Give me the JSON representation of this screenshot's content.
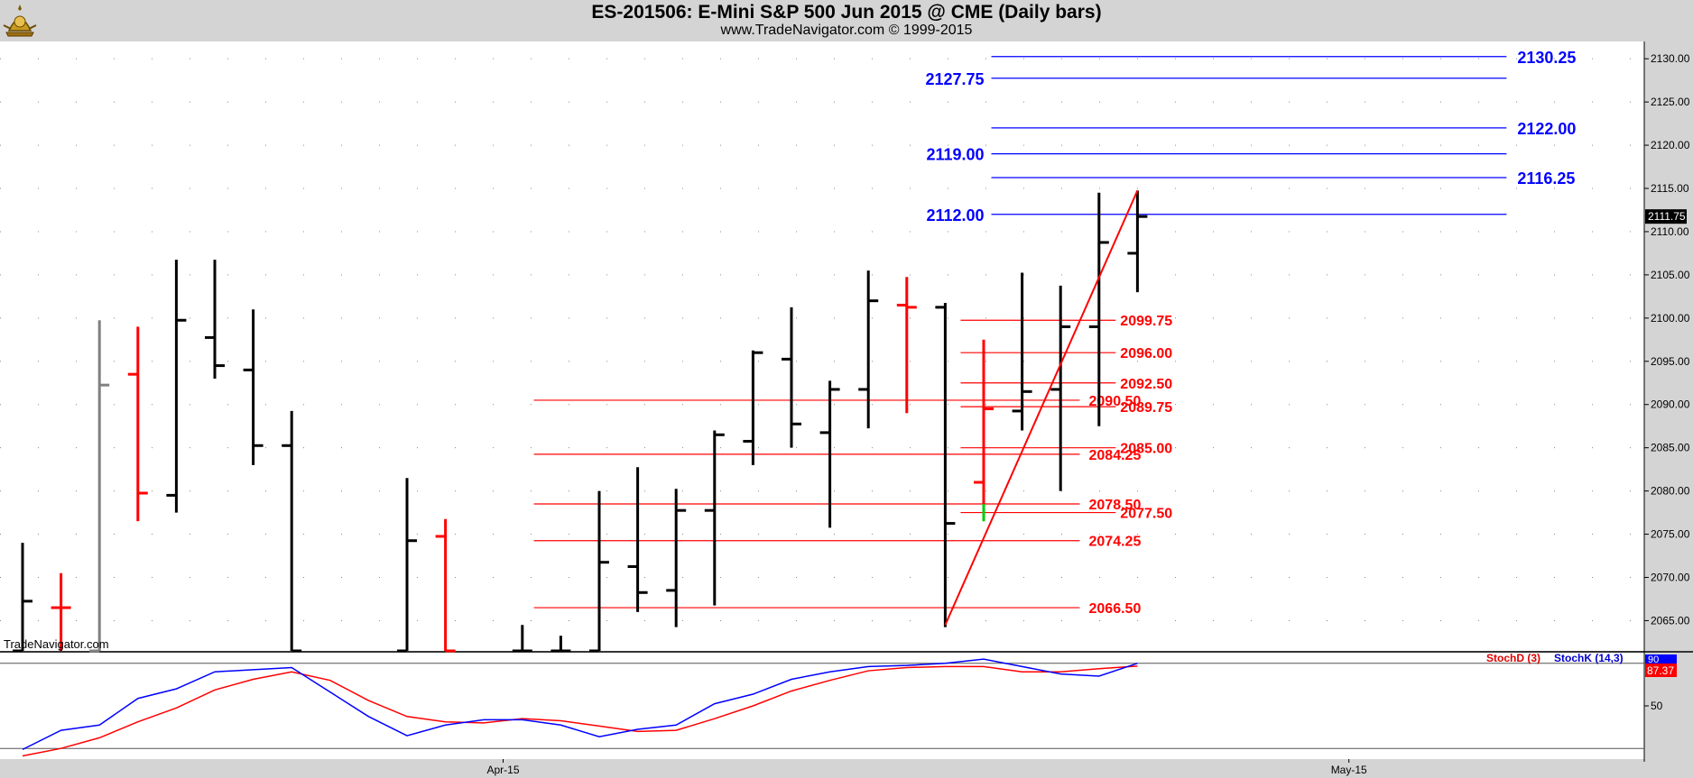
{
  "header": {
    "title": "ES-201506:  E-Mini S&P 500 Jun 2015 @ CME  (Daily bars)",
    "subtitle": "www.TradeNavigator.com © 1999-2015"
  },
  "watermark": "TradeNavigator.com",
  "colors": {
    "up_bar": "#000000",
    "down_bar": "#ff0000",
    "neutral_bar": "#808080",
    "blue_level": "#0000ff",
    "red_level": "#ff0000",
    "stoch_d": "#ff0000",
    "stoch_k": "#0000ff",
    "plot_bg": "#ffffff",
    "frame_bg": "#d4d4d4"
  },
  "chart_data": {
    "type": "ohlc",
    "price_axis": {
      "ylim": [
        2061.5,
        2132.0
      ],
      "ticks": [
        "2065.00",
        "2070.00",
        "2075.00",
        "2080.00",
        "2085.00",
        "2090.00",
        "2095.00",
        "2100.00",
        "2105.00",
        "2110.00",
        "2115.00",
        "2120.00",
        "2125.00",
        "2130.00"
      ],
      "last_price_label": "2111.75",
      "grid": "dotted"
    },
    "x_axis": {
      "labels": [
        {
          "text": "Apr-15",
          "index": 12.5
        },
        {
          "text": "May-15",
          "index": 34.5
        }
      ],
      "xlim": [
        -0.7,
        42.7
      ]
    },
    "bars": [
      {
        "x": 0,
        "o": 2061.5,
        "h": 2074.0,
        "l": 2061.5,
        "c": 2067.25,
        "color": "up"
      },
      {
        "x": 1,
        "o": 2066.5,
        "h": 2070.5,
        "l": 2061.5,
        "c": 2066.5,
        "color": "down"
      },
      {
        "x": 2,
        "o": 2061.5,
        "h": 2099.75,
        "l": 2061.5,
        "c": 2092.25,
        "color": "neutral"
      },
      {
        "x": 3,
        "o": 2093.5,
        "h": 2099.0,
        "l": 2076.5,
        "c": 2079.75,
        "color": "down"
      },
      {
        "x": 4,
        "o": 2079.5,
        "h": 2106.75,
        "l": 2077.5,
        "c": 2099.75,
        "color": "up"
      },
      {
        "x": 5,
        "o": 2097.75,
        "h": 2106.75,
        "l": 2093.0,
        "c": 2094.5,
        "color": "up"
      },
      {
        "x": 6,
        "o": 2094.0,
        "h": 2101.0,
        "l": 2083.0,
        "c": 2085.25,
        "color": "up"
      },
      {
        "x": 7,
        "o": 2085.25,
        "h": 2089.25,
        "l": 2061.5,
        "c": 2061.5,
        "color": "up"
      },
      {
        "x": 10,
        "o": 2061.5,
        "h": 2081.5,
        "l": 2061.5,
        "c": 2074.25,
        "color": "up"
      },
      {
        "x": 11,
        "o": 2074.75,
        "h": 2076.75,
        "l": 2061.5,
        "c": 2061.5,
        "color": "down"
      },
      {
        "x": 13,
        "o": 2061.5,
        "h": 2064.5,
        "l": 2061.5,
        "c": 2061.5,
        "color": "up"
      },
      {
        "x": 14,
        "o": 2061.5,
        "h": 2063.25,
        "l": 2061.5,
        "c": 2061.5,
        "color": "up"
      },
      {
        "x": 15,
        "o": 2061.5,
        "h": 2080.0,
        "l": 2061.5,
        "c": 2071.75,
        "color": "up"
      },
      {
        "x": 16,
        "o": 2071.25,
        "h": 2082.75,
        "l": 2066.0,
        "c": 2068.25,
        "color": "up"
      },
      {
        "x": 17,
        "o": 2068.5,
        "h": 2080.25,
        "l": 2064.25,
        "c": 2077.75,
        "color": "up"
      },
      {
        "x": 18,
        "o": 2077.75,
        "h": 2087.0,
        "l": 2066.75,
        "c": 2086.5,
        "color": "up"
      },
      {
        "x": 19,
        "o": 2085.75,
        "h": 2096.25,
        "l": 2083.0,
        "c": 2096.0,
        "color": "up"
      },
      {
        "x": 20,
        "o": 2095.25,
        "h": 2101.25,
        "l": 2085.0,
        "c": 2087.75,
        "color": "up"
      },
      {
        "x": 21,
        "o": 2086.75,
        "h": 2092.75,
        "l": 2075.75,
        "c": 2091.75,
        "color": "up"
      },
      {
        "x": 22,
        "o": 2091.75,
        "h": 2105.5,
        "l": 2087.25,
        "c": 2102.0,
        "color": "up"
      },
      {
        "x": 23,
        "o": 2101.5,
        "h": 2104.75,
        "l": 2089.0,
        "c": 2101.25,
        "color": "down"
      },
      {
        "x": 24,
        "o": 2101.25,
        "h": 2101.75,
        "l": 2064.25,
        "c": 2076.25,
        "color": "up"
      },
      {
        "x": 25,
        "o": 2081.0,
        "h": 2097.5,
        "l": 2076.5,
        "c": 2089.5,
        "color": "down"
      },
      {
        "x": 26,
        "o": 2089.25,
        "h": 2105.25,
        "l": 2087.0,
        "c": 2091.5,
        "color": "up"
      },
      {
        "x": 27,
        "o": 2091.75,
        "h": 2103.75,
        "l": 2080.0,
        "c": 2099.0,
        "color": "up"
      },
      {
        "x": 28,
        "o": 2099.0,
        "h": 2114.5,
        "l": 2087.5,
        "c": 2108.75,
        "color": "up"
      },
      {
        "x": 29,
        "o": 2107.5,
        "h": 2114.75,
        "l": 2103.0,
        "c": 2111.75,
        "color": "up"
      }
    ],
    "green_tick": {
      "x": 25,
      "from": 2078.5,
      "to": 2076.5
    },
    "trendline": {
      "from": {
        "x": 24,
        "y": 2064.5
      },
      "to": {
        "x": 29,
        "y": 2114.75
      }
    },
    "blue_levels": [
      {
        "value": 2130.25,
        "label": "2130.25",
        "side": "right"
      },
      {
        "value": 2127.75,
        "label": "2127.75",
        "side": "left"
      },
      {
        "value": 2122.0,
        "label": "2122.00",
        "side": "right"
      },
      {
        "value": 2119.0,
        "label": "2119.00",
        "side": "left"
      },
      {
        "value": 2116.25,
        "label": "2116.25",
        "side": "right"
      },
      {
        "value": 2112.0,
        "label": "2112.00",
        "side": "left"
      }
    ],
    "red_levels_long": [
      {
        "value": 2090.5,
        "label": "2090.50"
      },
      {
        "value": 2084.25,
        "label": "2084.25"
      },
      {
        "value": 2078.5,
        "label": "2078.50"
      },
      {
        "value": 2074.25,
        "label": "2074.25"
      },
      {
        "value": 2066.5,
        "label": "2066.50"
      }
    ],
    "red_levels_short": [
      {
        "value": 2099.75,
        "label": "2099.75"
      },
      {
        "value": 2096.0,
        "label": "2096.00"
      },
      {
        "value": 2092.5,
        "label": "2092.50"
      },
      {
        "value": 2089.75,
        "label": "2089.75"
      },
      {
        "value": 2085.0,
        "label": "2085.00"
      },
      {
        "value": 2077.5,
        "label": "2077.50"
      }
    ],
    "stochastic": {
      "ylim": [
        0,
        100
      ],
      "tick_label": "50",
      "reference_lines": [
        90,
        10
      ],
      "d_label": "StochD (3)",
      "k_label": "StochK (14,3)",
      "d_value_label": "87.37",
      "k_value_label": "90",
      "x": [
        0,
        1,
        2,
        3,
        4,
        5,
        6,
        7,
        8,
        9,
        10,
        11,
        12,
        13,
        14,
        15,
        16,
        17,
        18,
        19,
        20,
        21,
        22,
        23,
        24,
        25,
        26,
        27,
        28,
        29
      ],
      "d": [
        3,
        10,
        20,
        35,
        48,
        65,
        75,
        82,
        74,
        55,
        40,
        35,
        34,
        38,
        36,
        31,
        26,
        27,
        38,
        50,
        64,
        74,
        83,
        86,
        87,
        87,
        82,
        82,
        85,
        87.37
      ],
      "k": [
        9,
        27,
        32,
        57,
        66,
        82,
        84,
        86,
        63,
        40,
        22,
        32,
        37,
        37,
        32,
        21,
        28,
        32,
        52,
        61,
        75,
        82,
        87,
        88,
        90,
        94,
        87,
        80,
        78,
        90
      ]
    }
  }
}
